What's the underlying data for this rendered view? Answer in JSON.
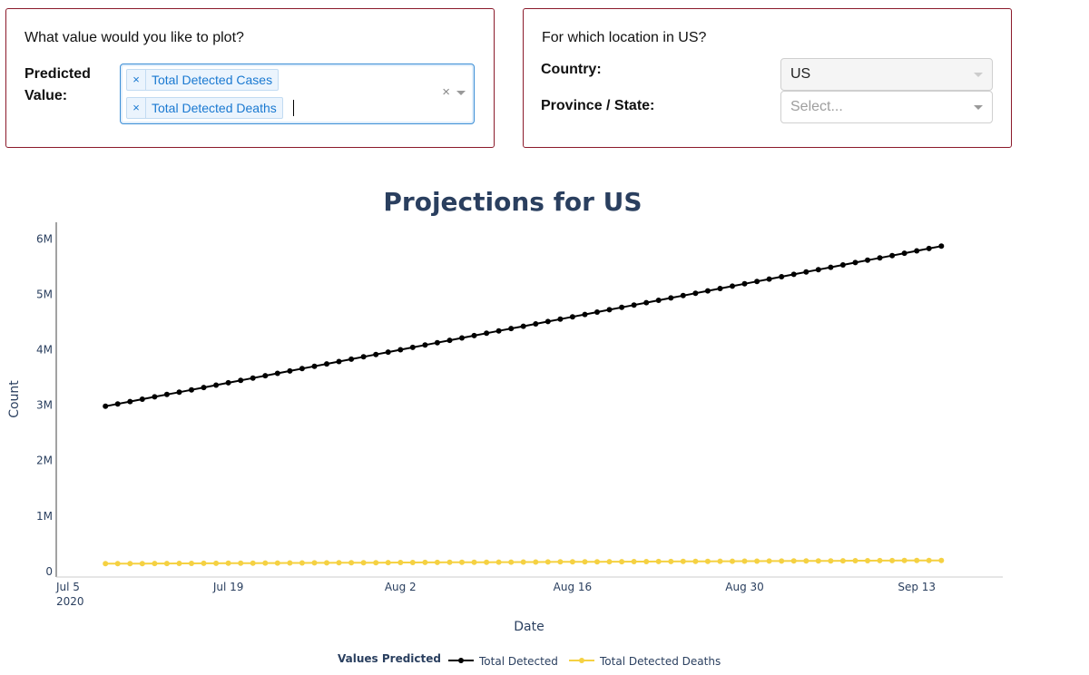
{
  "controls": {
    "value_panel": {
      "question": "What value would you like to plot?",
      "field_label": "Predicted Value:",
      "selected_tags": [
        "Total Detected Cases",
        "Total Detected Deaths"
      ],
      "tag_remove_glyph": "×",
      "clear_glyph": "×"
    },
    "location_panel": {
      "question": "For which location in US?",
      "country_label": "Country:",
      "country_value": "US",
      "province_label": "Province / State:",
      "province_placeholder": "Select..."
    }
  },
  "chart_data": {
    "type": "line",
    "title": "Projections for US",
    "xlabel": "Date",
    "ylabel": "Count",
    "x_start": "2020-07-09",
    "n_points": 69,
    "x_ticks": [
      {
        "date": "2020-07-05",
        "label": "Jul 5",
        "sublabel": "2020"
      },
      {
        "date": "2020-07-19",
        "label": "Jul 19"
      },
      {
        "date": "2020-08-02",
        "label": "Aug 2"
      },
      {
        "date": "2020-08-16",
        "label": "Aug 16"
      },
      {
        "date": "2020-08-30",
        "label": "Aug 30"
      },
      {
        "date": "2020-09-13",
        "label": "Sep 13"
      }
    ],
    "y_ticks": [
      {
        "value": 0,
        "label": "0"
      },
      {
        "value": 1000000,
        "label": "1M"
      },
      {
        "value": 2000000,
        "label": "2M"
      },
      {
        "value": 3000000,
        "label": "3M"
      },
      {
        "value": 4000000,
        "label": "4M"
      },
      {
        "value": 5000000,
        "label": "5M"
      },
      {
        "value": 6000000,
        "label": "6M"
      }
    ],
    "xlim": [
      "2020-07-05",
      "2020-09-20"
    ],
    "ylim": [
      -100000,
      6300000
    ],
    "legend_title": "Values Predicted",
    "legend_position": "bottom-center",
    "grid": false,
    "series": [
      {
        "name": "Total Detected",
        "color": "#000000",
        "start": 2980000,
        "end": 5870000
      },
      {
        "name": "Total Detected Deaths",
        "color": "#f5d142",
        "start": 140000,
        "end": 200000
      }
    ]
  },
  "colors": {
    "panel_border": "#8b1a2b",
    "title": "#2a3f5f",
    "tag_text": "#1a79d1"
  }
}
